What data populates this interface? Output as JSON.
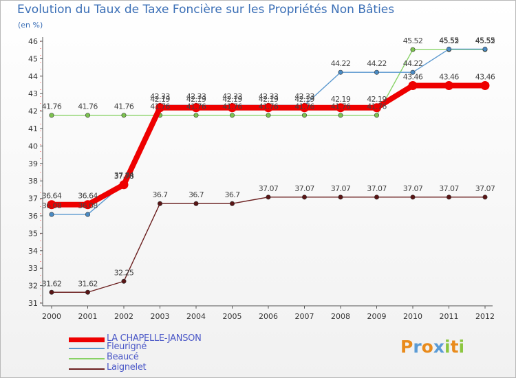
{
  "header": {
    "title": "Evolution du Taux de Taxe Foncière sur les Propriétés Non Bâties",
    "unit": "(en %)"
  },
  "logo": {
    "text": "Proxiti"
  },
  "chart_data": {
    "type": "line",
    "title": "Evolution du Taux de Taxe Foncière sur les Propriétés Non Bâties",
    "ylabel": "(en %)",
    "xlabel": "",
    "ylim": [
      31,
      46
    ],
    "y_ticks": [
      31,
      32,
      33,
      34,
      35,
      36,
      37,
      38,
      39,
      40,
      41,
      42,
      43,
      44,
      45,
      46
    ],
    "categories": [
      "2000",
      "2001",
      "2002",
      "2003",
      "2004",
      "2005",
      "2006",
      "2007",
      "2008",
      "2009",
      "2010",
      "2011",
      "2012"
    ],
    "grid": false,
    "legend_position": "bottom-left",
    "series": [
      {
        "name": "Laignelet",
        "color": "#6b1f1f",
        "dot_color": "#5a1515",
        "values": [
          31.62,
          31.62,
          32.25,
          36.7,
          36.7,
          36.7,
          37.07,
          37.07,
          37.07,
          37.07,
          37.07,
          37.07,
          37.07
        ],
        "labels": [
          "31.62",
          "31.62",
          "32.25",
          "36.7",
          "36.7",
          "36.7",
          "37.07",
          "37.07",
          "37.07",
          "37.07",
          "37.07",
          "37.07",
          "37.07"
        ]
      },
      {
        "name": "Beaucé",
        "color": "#88d266",
        "dot_color": "#7cc24f",
        "values": [
          41.76,
          41.76,
          41.76,
          41.76,
          41.76,
          41.76,
          41.76,
          41.76,
          41.76,
          41.76,
          45.52,
          45.52,
          45.52
        ],
        "labels": [
          "41.76",
          "41.76",
          "41.76",
          "41.76",
          "41.76",
          "41.76",
          "41.76",
          "41.76",
          "41.76",
          "41.76",
          "45.52",
          "45.52",
          "45.52"
        ]
      },
      {
        "name": "Fleurigné",
        "color": "#5a98cf",
        "dot_color": "#4a8bc4",
        "values": [
          36.08,
          36.08,
          37.84,
          42.33,
          42.33,
          42.33,
          42.33,
          42.33,
          44.22,
          44.22,
          44.22,
          45.55,
          45.55
        ],
        "labels": [
          "36.08",
          "36.08",
          "37.84",
          "42.33",
          "42.33",
          "42.33",
          "42.33",
          "42.33",
          "44.22",
          "44.22",
          "44.22",
          "45.55",
          "45.55"
        ]
      },
      {
        "name": "LA CHAPELLE-JANSON",
        "color": "#ee0000",
        "dot_color": "#ee0000",
        "values": [
          36.64,
          36.64,
          37.78,
          42.19,
          42.19,
          42.19,
          42.19,
          42.19,
          42.19,
          42.19,
          43.46,
          43.46,
          43.46
        ],
        "labels": [
          "36.64",
          "36.64",
          "37.78",
          "42.19",
          "42.19",
          "42.19",
          "42.19",
          "42.19",
          "42.19",
          "42.19",
          "43.46",
          "43.46",
          "43.46"
        ]
      }
    ],
    "legend": [
      "LA CHAPELLE-JANSON",
      "Fleurigné",
      "Beaucé",
      "Laignelet"
    ]
  }
}
